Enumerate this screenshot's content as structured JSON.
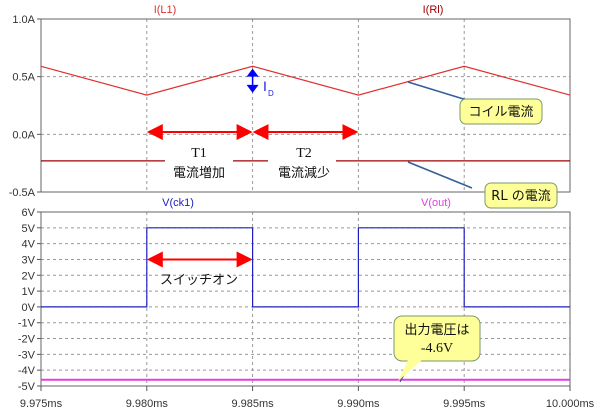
{
  "chart_data": [
    {
      "type": "line",
      "x": [
        9.975,
        9.98,
        9.985,
        9.99,
        9.995,
        10.0
      ],
      "xlim": [
        9.975,
        10.0
      ],
      "xtick_labels": [
        "9.975ms",
        "9.980ms",
        "9.985ms",
        "9.990ms",
        "9.995ms",
        "10.000ms"
      ],
      "ylim": [
        -0.5,
        1.0
      ],
      "ytick_values": [
        1.0,
        0.5,
        0.0,
        -0.5
      ],
      "ytick_labels": [
        "1.0A",
        "0.5A",
        "0.0A",
        "-0.5A"
      ],
      "grid": true,
      "series": [
        {
          "name": "I(L1)",
          "color": "#e03030",
          "values": [
            0.59,
            0.34,
            0.59,
            0.34,
            0.59,
            0.34
          ]
        },
        {
          "name": "I(Rl)",
          "color": "#a00000",
          "values": [
            -0.23,
            -0.23,
            -0.23,
            -0.23,
            -0.23,
            -0.23
          ]
        }
      ],
      "annotations": {
        "id_label": "I",
        "id_sub": "D",
        "t1": "T1",
        "t1_desc": "電流増加",
        "t2": "T2",
        "t2_desc": "電流減少",
        "callout_coil": "コイル電流",
        "callout_rl": "RL の電流"
      }
    },
    {
      "type": "line",
      "x": [
        9.975,
        9.98,
        9.98,
        9.985,
        9.985,
        9.99,
        9.99,
        9.995,
        9.995,
        10.0
      ],
      "xlim": [
        9.975,
        10.0
      ],
      "ylim": [
        -5,
        6
      ],
      "ytick_values": [
        6,
        5,
        4,
        3,
        2,
        1,
        0,
        -1,
        -2,
        -3,
        -4,
        -5
      ],
      "ytick_labels": [
        "6V",
        "5V",
        "4V",
        "3V",
        "2V",
        "1V",
        "0V",
        "-1V",
        "-2V",
        "-3V",
        "-4V",
        "-5V"
      ],
      "grid": true,
      "series": [
        {
          "name": "V(ck1)",
          "color": "#2020c0",
          "values": [
            0,
            0,
            5,
            5,
            0,
            0,
            5,
            5,
            0,
            0
          ]
        },
        {
          "name": "V(out)",
          "color": "#e040e0",
          "values": [
            -4.6,
            -4.6,
            -4.6,
            -4.6,
            -4.6,
            -4.6,
            -4.6,
            -4.6,
            -4.6,
            -4.6
          ]
        }
      ],
      "annotations": {
        "switch_on": "スイッチオン",
        "callout_vout_1": "出力電圧は",
        "callout_vout_2": "-4.6V"
      }
    }
  ]
}
